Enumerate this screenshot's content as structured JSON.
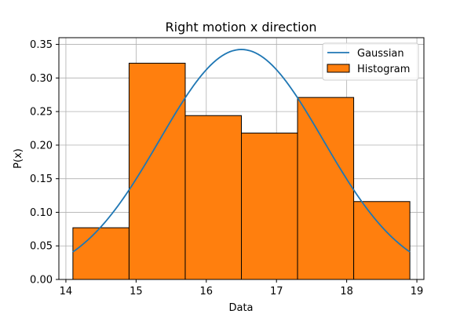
{
  "chart_data": {
    "type": "bar",
    "title": "Right motion x direction",
    "xlabel": "Data",
    "ylabel": "P(x)",
    "xlim": [
      13.9,
      19.1
    ],
    "ylim": [
      0,
      0.36
    ],
    "xticks": [
      14,
      15,
      16,
      17,
      18,
      19
    ],
    "xtick_labels": [
      "14",
      "15",
      "16",
      "17",
      "18",
      "19"
    ],
    "yticks": [
      0.0,
      0.05,
      0.1,
      0.15,
      0.2,
      0.25,
      0.3,
      0.35
    ],
    "ytick_labels": [
      "0.00",
      "0.05",
      "0.10",
      "0.15",
      "0.20",
      "0.25",
      "0.30",
      "0.35"
    ],
    "grid": true,
    "legend_position": "top-right",
    "histogram": {
      "name": "Histogram",
      "color": "#ff7f0e",
      "edge_color": "#000000",
      "bin_edges": [
        14.1,
        14.9,
        15.7,
        16.5,
        17.3,
        18.1,
        18.9
      ],
      "values": [
        0.077,
        0.322,
        0.244,
        0.218,
        0.271,
        0.116
      ]
    },
    "gaussian": {
      "name": "Gaussian",
      "color": "#1f77b4",
      "mean": 16.5,
      "std": 1.165,
      "x_range": [
        14.1,
        18.9
      ]
    }
  }
}
